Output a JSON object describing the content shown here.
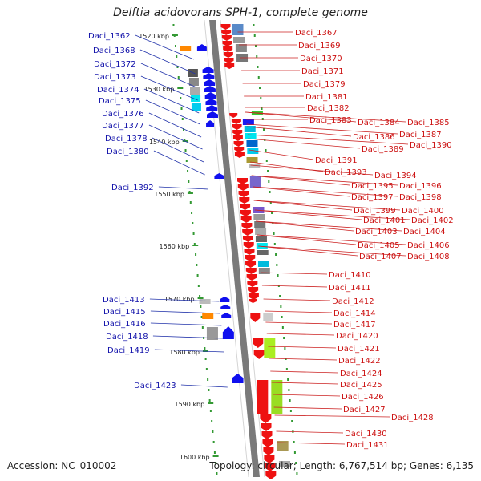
{
  "title": "Delftia acidovorans SPH-1, complete genome",
  "footer": {
    "accession": "Accession: NC_010002",
    "summary": "Topology: circular; Length: 6,767,514 bp; Genes: 6,135"
  },
  "colors": {
    "forward_label": "#1111aa",
    "reverse_label": "#cc1111",
    "forward_gene": "#1010ee",
    "reverse_gene": "#ee1111",
    "tick": "#339933"
  },
  "scale_ticks": [
    "1520 kbp",
    "1530 kbp",
    "1540 kbp",
    "1550 kbp",
    "1560 kbp",
    "1570 kbp",
    "1580 kbp",
    "1590 kbp",
    "1600 kbp"
  ],
  "left_labels": [
    "Daci_1362",
    "Daci_1368",
    "Daci_1372",
    "Daci_1373",
    "Daci_1374",
    "Daci_1375",
    "Daci_1376",
    "Daci_1377",
    "Daci_1378",
    "Daci_1380",
    "Daci_1392",
    "Daci_1413",
    "Daci_1415",
    "Daci_1416",
    "Daci_1418",
    "Daci_1419",
    "Daci_1423"
  ],
  "right_labels": [
    "Daci_1367",
    "Daci_1369",
    "Daci_1370",
    "Daci_1371",
    "Daci_1379",
    "Daci_1381",
    "Daci_1382",
    "Daci_1383",
    "Daci_1384",
    "Daci_1385",
    "Daci_1386",
    "Daci_1387",
    "Daci_1389",
    "Daci_1390",
    "Daci_1391",
    "Daci_1393",
    "Daci_1394",
    "Daci_1395",
    "Daci_1396",
    "Daci_1397",
    "Daci_1398",
    "Daci_1399",
    "Daci_1400",
    "Daci_1401",
    "Daci_1402",
    "Daci_1403",
    "Daci_1404",
    "Daci_1405",
    "Daci_1406",
    "Daci_1407",
    "Daci_1408",
    "Daci_1410",
    "Daci_1411",
    "Daci_1412",
    "Daci_1414",
    "Daci_1417",
    "Daci_1420",
    "Daci_1421",
    "Daci_1422",
    "Daci_1424",
    "Daci_1425",
    "Daci_1426",
    "Daci_1427",
    "Daci_1428",
    "Daci_1430",
    "Daci_1431"
  ]
}
